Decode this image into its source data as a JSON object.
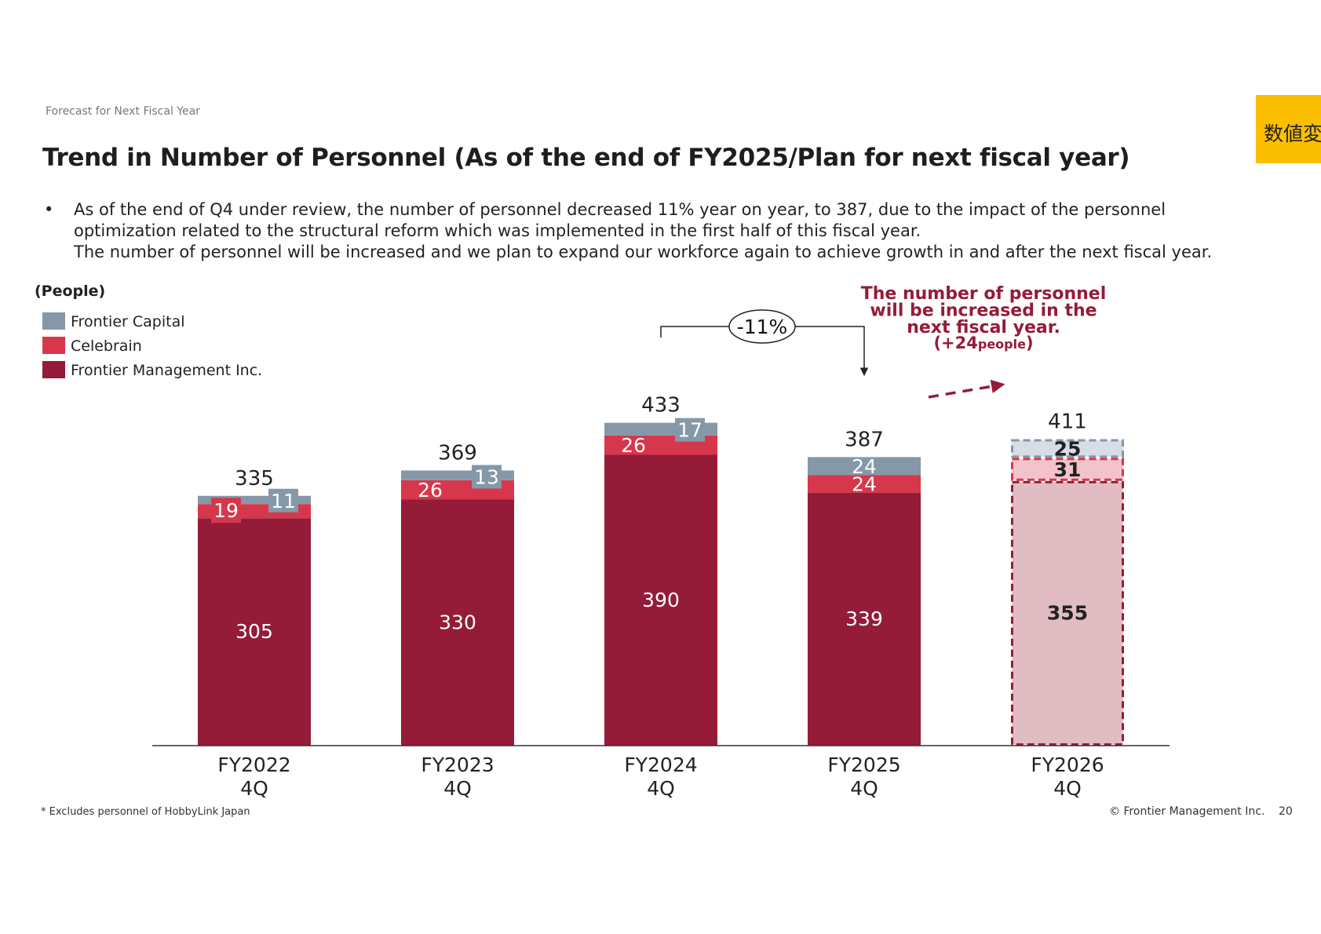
{
  "header": {
    "eyebrow": "Forecast for Next Fiscal Year",
    "title": "Trend in Number of Personnel (As of the end of FY2025/Plan for next fiscal year)",
    "tag": "数値変"
  },
  "bullet": {
    "symbol": "•",
    "lines": [
      "As of the end of Q4 under review, the number of personnel decreased 11% year on year, to 387, due to the impact of the personnel",
      "optimization related to the structural reform which was implemented in the first half of this fiscal year.",
      "The number of personnel will be increased and we plan to expand our workforce again to achieve growth in and after the next fiscal year."
    ]
  },
  "chart_data": {
    "type": "bar",
    "stacked": true,
    "unit_label": "(People)",
    "categories": [
      [
        "FY2022",
        "4Q"
      ],
      [
        "FY2023",
        "4Q"
      ],
      [
        "FY2024",
        "4Q"
      ],
      [
        "FY2025",
        "4Q"
      ],
      [
        "FY2026",
        "4Q"
      ]
    ],
    "series": [
      {
        "name": "Frontier Management Inc.",
        "color": "#941c38",
        "values": [
          305,
          330,
          390,
          339,
          355
        ]
      },
      {
        "name": "Celebrain",
        "color": "#d7374b",
        "values": [
          19,
          26,
          26,
          24,
          31
        ]
      },
      {
        "name": "Frontier Capital",
        "color": "#8598a8",
        "values": [
          11,
          13,
          17,
          24,
          25
        ]
      }
    ],
    "totals": [
      335,
      369,
      433,
      387,
      411
    ],
    "plan_index": 4,
    "plan_colors": {
      "fill_main": "#e2bcc3",
      "fill_mid": "#f2c3cb",
      "fill_top": "#d6dde4",
      "border_main": "#941c38",
      "border_mid": "#d7374b",
      "border_top": "#8598a8"
    },
    "ylim": [
      0,
      440
    ],
    "legend_position": "top-left",
    "annotations": {
      "yoy_change": "-11%",
      "callout_lines": [
        "The number of personnel",
        "will be increased in the",
        "next fiscal year."
      ],
      "callout_sub_prefix": "(+24",
      "callout_sub_unit": "people",
      "callout_sub_suffix": ")",
      "callout_color": "#941c38"
    }
  },
  "footer": {
    "footnote": "* Excludes personnel of HobbyLink Japan",
    "copyright": "© Frontier Management Inc.",
    "page_number": "20"
  }
}
